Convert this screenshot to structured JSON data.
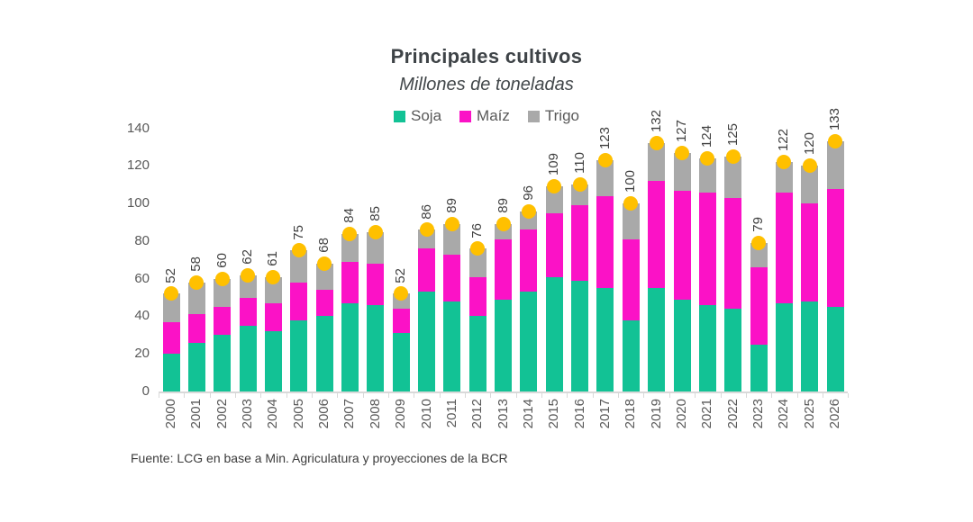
{
  "chart_data": {
    "type": "bar",
    "variant": "stacked",
    "title": "Principales cultivos",
    "subtitle": "Millones de toneladas",
    "source": "Fuente: LCG en base a Min. Agriculatura y proyecciones de la BCR",
    "categories": [
      "2000",
      "2001",
      "2002",
      "2003",
      "2004",
      "2005",
      "2006",
      "2007",
      "2008",
      "2009",
      "2010",
      "2011",
      "2012",
      "2013",
      "2014",
      "2015",
      "2016",
      "2017",
      "2018",
      "2019",
      "2020",
      "2021",
      "2022",
      "2023",
      "2024",
      "2025",
      "2026"
    ],
    "series": [
      {
        "name": "Soja",
        "color": "#12c295",
        "values": [
          20,
          26,
          30,
          35,
          32,
          38,
          40,
          47,
          46,
          31,
          53,
          48,
          40,
          49,
          53,
          61,
          59,
          55,
          38,
          55,
          49,
          46,
          44,
          25,
          47,
          48,
          45
        ]
      },
      {
        "name": "Maíz",
        "color": "#fb12c6",
        "values": [
          17,
          15,
          15,
          15,
          15,
          20,
          14,
          22,
          22,
          13,
          23,
          25,
          21,
          32,
          33,
          34,
          40,
          49,
          43,
          57,
          58,
          60,
          59,
          41,
          59,
          52,
          63
        ]
      },
      {
        "name": "Trigo",
        "color": "#a9a9a9",
        "values": [
          15,
          17,
          15,
          12,
          14,
          17,
          14,
          15,
          17,
          8,
          10,
          16,
          15,
          8,
          10,
          14,
          11,
          19,
          19,
          20,
          20,
          18,
          22,
          13,
          16,
          20,
          25
        ]
      }
    ],
    "totals": [
      52,
      58,
      60,
      62,
      61,
      75,
      68,
      84,
      85,
      52,
      86,
      89,
      76,
      89,
      96,
      109,
      110,
      123,
      100,
      132,
      127,
      124,
      125,
      79,
      122,
      120,
      133
    ],
    "marker_color": "#ffc000",
    "yticks": [
      0,
      20,
      40,
      60,
      80,
      100,
      120,
      140
    ],
    "ylim": [
      0,
      140
    ],
    "xlabel": "",
    "ylabel": "",
    "grid": false,
    "legend_position": "top-center",
    "axis_line_color": "#d9d9d9"
  }
}
